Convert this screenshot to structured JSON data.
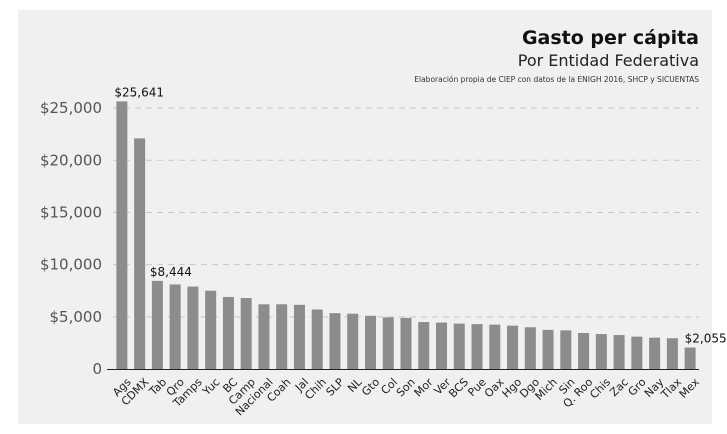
{
  "chart_data": {
    "type": "bar",
    "title": "Gasto per cápita",
    "subtitle": "Por Entidad Federativa",
    "source": "Elaboración propia de CIEP con datos de la ENIGH 2016, SHCP y SICUENTAS",
    "xlabel": "",
    "ylabel": "",
    "ylim": [
      0,
      27500
    ],
    "yticks": [
      0,
      5000,
      10000,
      15000,
      20000,
      25000
    ],
    "ytick_labels": [
      "0",
      "$5,000",
      "$10,000",
      "$15,000",
      "$20,000",
      "$25,000"
    ],
    "grid": "horizontal dashed",
    "bar_color": "#8c8c8c",
    "categories": [
      "Ags",
      "CDMX",
      "Tab",
      "Qro",
      "Tamps",
      "Yuc",
      "BC",
      "Camp",
      "Nacional",
      "Coah",
      "Jal",
      "Chih",
      "SLP",
      "NL",
      "Gto",
      "Col",
      "Son",
      "Mor",
      "Ver",
      "BCS",
      "Pue",
      "Oax",
      "Hgo",
      "Dgo",
      "Mich",
      "Sin",
      "Q. Roo",
      "Chis",
      "Zac",
      "Gro",
      "Nay",
      "Tlax",
      "Mex"
    ],
    "values": [
      25641,
      22100,
      8444,
      8100,
      7900,
      7500,
      6900,
      6800,
      6200,
      6200,
      6150,
      5700,
      5350,
      5300,
      5100,
      4950,
      4900,
      4500,
      4450,
      4350,
      4300,
      4250,
      4150,
      4000,
      3750,
      3700,
      3450,
      3350,
      3250,
      3100,
      3000,
      2950,
      2055
    ],
    "data_labels": [
      {
        "index": 0,
        "text": "$25,641"
      },
      {
        "index": 2,
        "text": "$8,444"
      },
      {
        "index": 32,
        "text": "$2,055"
      }
    ]
  }
}
